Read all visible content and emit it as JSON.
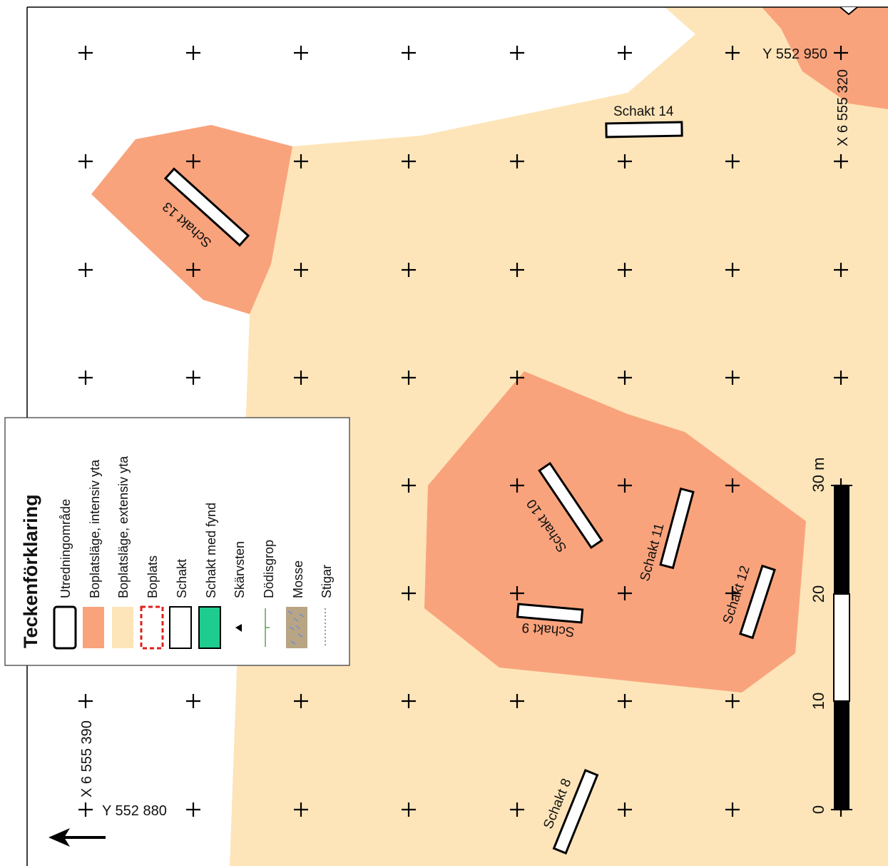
{
  "legend": {
    "title": "Teckenförklaring",
    "items": [
      {
        "label": "Utredningområde",
        "symbol": "utredningsomrade-symbol",
        "color": "#ffffff"
      },
      {
        "label": "Boplatsläge, intensiv yta",
        "symbol": "intensiv-symbol",
        "color": "#f9a37c"
      },
      {
        "label": "Boplatsläge, extensiv yta",
        "symbol": "extensiv-symbol",
        "color": "#fde5b9"
      },
      {
        "label": "Boplats",
        "symbol": "boplats-symbol",
        "color": "#e0201b"
      },
      {
        "label": "Schakt",
        "symbol": "schakt-symbol",
        "color": "#ffffff"
      },
      {
        "label": "Schakt med fynd",
        "symbol": "schakt-med-fynd-symbol",
        "color": "#1fcc8f"
      },
      {
        "label": "Skärvsten",
        "symbol": "triangle-icon",
        "color": "#000000"
      },
      {
        "label": "Dödisgrop",
        "symbol": "dodisgrop-icon",
        "color": "#5aa05a"
      },
      {
        "label": "Mosse",
        "symbol": "mosse-pattern-icon",
        "color": "#b9a583"
      },
      {
        "label": "Stigar",
        "symbol": "dotted-line-icon",
        "color": "#777777"
      }
    ]
  },
  "coordinates": {
    "top_y": "Y 552 950",
    "top_x": "X 6 555 320",
    "bottom_y": "Y 552 880",
    "bottom_x": "X 6 555 390"
  },
  "trenches": [
    "Schakt 8",
    "Schakt 9",
    "Schakt 10",
    "Schakt 11",
    "Schakt 12",
    "Schakt 13",
    "Schakt 14"
  ],
  "scale_bar": {
    "ticks": [
      "0",
      "10",
      "20",
      "30 m"
    ]
  },
  "north_arrow": {
    "icon": "north-arrow-icon"
  },
  "colors": {
    "intensive": "#f9a37c",
    "extensive": "#fde5b9",
    "border": "#000000",
    "background": "#ffffff"
  }
}
